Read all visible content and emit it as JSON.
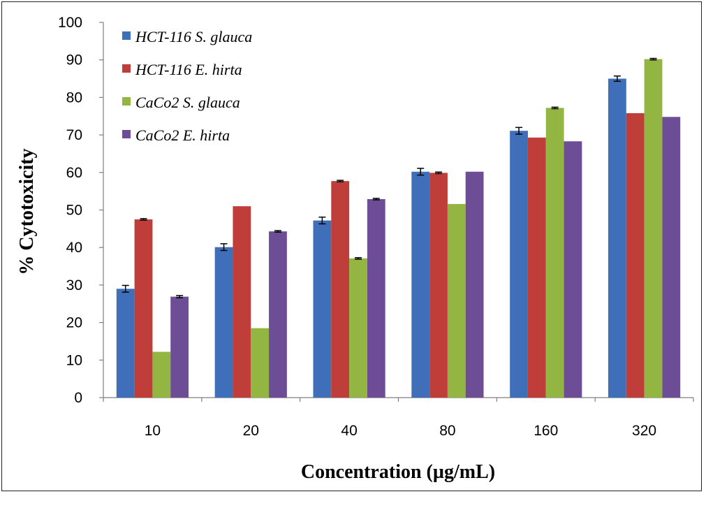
{
  "chart_data": {
    "type": "bar",
    "categories": [
      "10",
      "20",
      "40",
      "80",
      "160",
      "320"
    ],
    "series": [
      {
        "name": "HCT-116 S. glauca",
        "values": [
          29,
          40.1,
          47.2,
          60.2,
          71.1,
          85
        ],
        "errors": [
          0.9,
          0.9,
          0.9,
          0.9,
          0.9,
          0.7
        ],
        "color": "#3f6fb8"
      },
      {
        "name": "HCT-116 E. hirta",
        "values": [
          47.5,
          51,
          57.7,
          59.9,
          69.3,
          75.8
        ],
        "errors": [
          0.2,
          0,
          0.2,
          0.2,
          0,
          0
        ],
        "color": "#bf3e3a"
      },
      {
        "name": "CaCo2 S. glauca",
        "values": [
          12.2,
          18.5,
          37.1,
          51.6,
          77.2,
          90.2
        ],
        "errors": [
          0,
          0,
          0.2,
          0,
          0.2,
          0.2
        ],
        "color": "#93b542"
      },
      {
        "name": "CaCo2 E. hirta",
        "values": [
          26.9,
          44.3,
          52.9,
          60.2,
          68.3,
          74.8
        ],
        "errors": [
          0.3,
          0.2,
          0.2,
          0,
          0,
          0
        ],
        "color": "#6d4d96"
      }
    ],
    "xlabel": "Concentration (µg/mL)",
    "ylabel": "% Cytotoxicity",
    "ylim": [
      0,
      100
    ],
    "yticks": [
      "0",
      "10",
      "20",
      "30",
      "40",
      "50",
      "60",
      "70",
      "80",
      "90",
      "100"
    ],
    "grid": false,
    "legend": "top-left"
  }
}
